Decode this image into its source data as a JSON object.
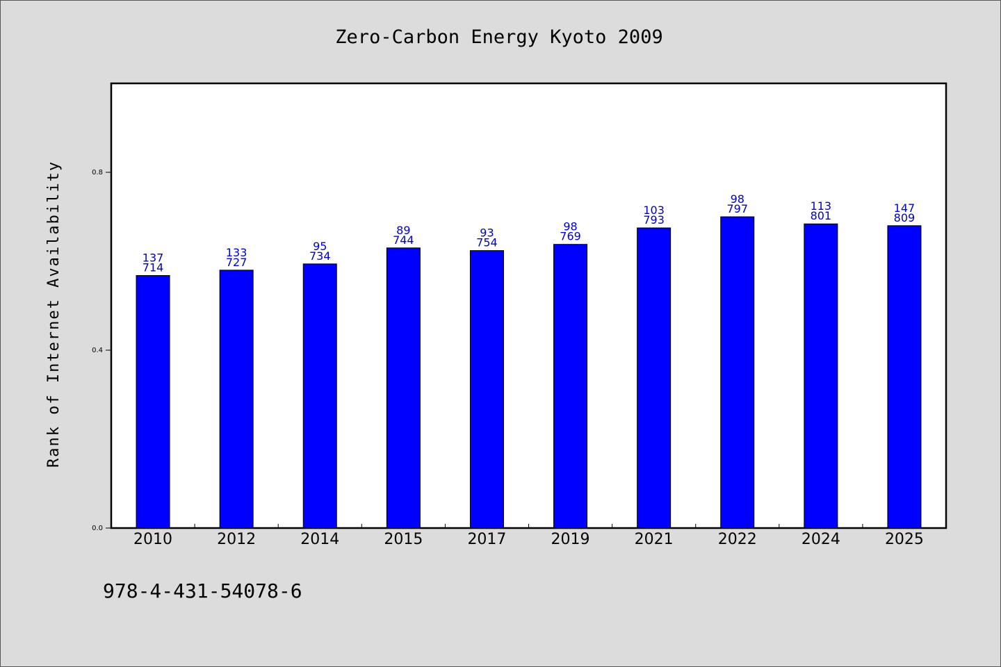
{
  "chart_data": {
    "type": "bar",
    "title": "Zero-Carbon Energy Kyoto 2009",
    "ylabel": "Rank of Internet Availability",
    "xlabel": "",
    "ylim": [
      0,
      1.0
    ],
    "yticks": [
      0.0,
      0.4,
      0.8
    ],
    "ytick_labels": [
      "0.0",
      "0.4",
      "0.8"
    ],
    "categories": [
      "2010",
      "2012",
      "2014",
      "2015",
      "2017",
      "2019",
      "2021",
      "2022",
      "2024",
      "2025"
    ],
    "values": [
      0.568,
      0.58,
      0.594,
      0.63,
      0.624,
      0.638,
      0.675,
      0.7,
      0.684,
      0.68
    ],
    "labels_top": [
      "137",
      "133",
      "95",
      "89",
      "93",
      "98",
      "103",
      "98",
      "113",
      "147"
    ],
    "labels_bottom": [
      "714",
      "727",
      "734",
      "744",
      "754",
      "769",
      "793",
      "797",
      "801",
      "809"
    ],
    "bar_color": "#0000ff",
    "label_color": "#0000cc",
    "grid": false,
    "legend": "none"
  },
  "footer": {
    "identifier": "978-4-431-54078-6"
  }
}
